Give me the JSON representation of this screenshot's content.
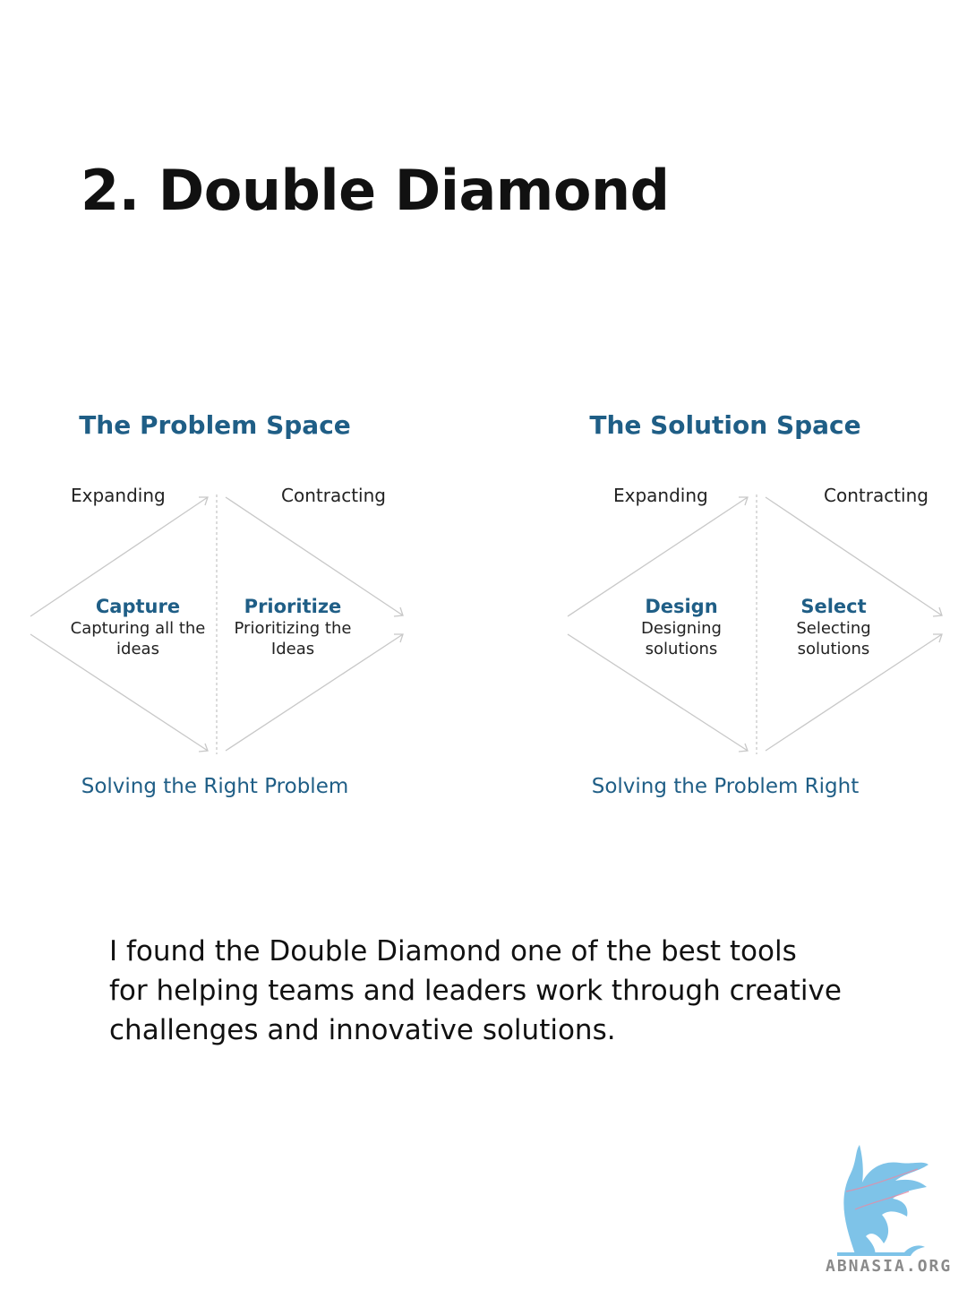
{
  "title": "2. Double Diamond",
  "diagrams": [
    {
      "space_title": "The Problem Space",
      "expanding": "Expanding",
      "contracting": "Contracting",
      "left_node": {
        "name": "Capture",
        "desc1": "Capturing all the",
        "desc2": "ideas"
      },
      "right_node": {
        "name": "Prioritize",
        "desc1": "Prioritizing the",
        "desc2": "Ideas"
      },
      "footer": "Solving the Right Problem"
    },
    {
      "space_title": "The Solution Space",
      "expanding": "Expanding",
      "contracting": "Contracting",
      "left_node": {
        "name": "Design",
        "desc1": "Designing",
        "desc2": "solutions"
      },
      "right_node": {
        "name": "Select",
        "desc1": "Selecting",
        "desc2": "solutions"
      },
      "footer": "Solving the Problem Right"
    }
  ],
  "body_text": "I found the Double Diamond one of the best tools for helping teams and leaders work through creative challenges and innovative solutions.",
  "logo_text": "ABNASIA.ORG",
  "colors": {
    "accent": "#1f5e86",
    "text": "#111111",
    "line": "#c8c8c8",
    "logo": "#7ec3e8"
  }
}
